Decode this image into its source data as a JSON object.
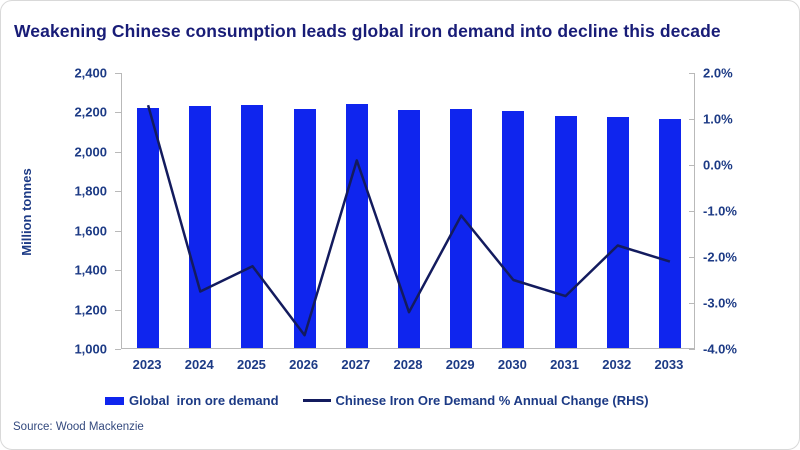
{
  "source": "Source: Wood Mackenzie",
  "colors": {
    "bar": "#0f25ee",
    "line": "#131b5e",
    "title": "#181c77",
    "axis_label": "#1c3a85",
    "axis_line": "#b9b9b9"
  },
  "chart_data": {
    "type": "bar",
    "subtype": "combo-bar-line",
    "title": "Weakening Chinese consumption leads global iron demand into decline this decade",
    "categories": [
      "2023",
      "2024",
      "2025",
      "2026",
      "2027",
      "2028",
      "2029",
      "2030",
      "2031",
      "2032",
      "2033"
    ],
    "series": [
      {
        "name": "Global  iron ore demand",
        "type": "bar",
        "axis": "left",
        "color": "#0f25ee",
        "values": [
          2215,
          2230,
          2235,
          2210,
          2240,
          2205,
          2210,
          2200,
          2175,
          2170,
          2160
        ]
      },
      {
        "name": "Chinese Iron Ore Demand % Annual Change (RHS)",
        "type": "line",
        "axis": "right",
        "color": "#131b5e",
        "values": [
          1.3,
          -2.75,
          -2.2,
          -3.7,
          0.1,
          -3.2,
          -1.1,
          -2.5,
          -2.85,
          -1.75,
          -2.1
        ]
      }
    ],
    "left_axis": {
      "label": "Million tonnes",
      "min": 1000,
      "max": 2400,
      "step": 200,
      "tick_labels": [
        "2,400",
        "2,200",
        "2,000",
        "1,800",
        "1,600",
        "1,400",
        "1,200",
        "1,000"
      ]
    },
    "right_axis": {
      "label": "",
      "min": -4.0,
      "max": 2.0,
      "step": 1.0,
      "tick_labels": [
        "2.0%",
        "1.0%",
        "0.0%",
        "-1.0%",
        "-2.0%",
        "-3.0%",
        "-4.0%"
      ]
    },
    "grid": false,
    "legend_position": "bottom"
  }
}
